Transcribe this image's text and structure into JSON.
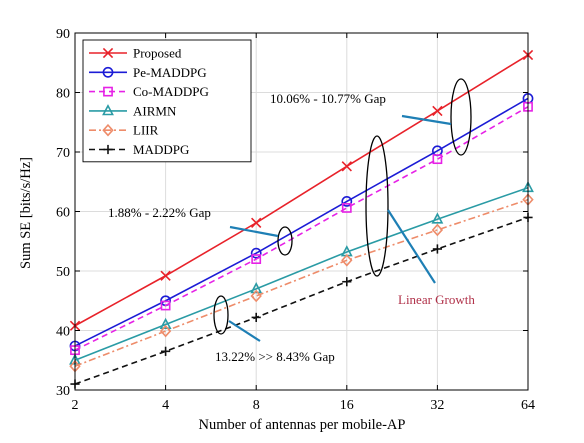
{
  "chart_data": {
    "type": "line",
    "xlabel": "Number of antennas per mobile-AP",
    "ylabel": "Sum SE [bits/s/Hz]",
    "x_scale": "log2",
    "x": [
      2,
      4,
      8,
      16,
      32,
      64
    ],
    "x_tick_labels": [
      "2",
      "4",
      "8",
      "16",
      "32",
      "64"
    ],
    "ylim": [
      30,
      90
    ],
    "y_ticks": [
      30,
      40,
      50,
      60,
      70,
      80,
      90
    ],
    "grid": true,
    "legend_position": "top-left",
    "series": [
      {
        "name": "Proposed",
        "color": "#e8222a",
        "marker": "x",
        "dash": "solid",
        "values": [
          40.8,
          49.2,
          58.1,
          67.6,
          76.9,
          86.3
        ]
      },
      {
        "name": "Pe-MADDPG",
        "color": "#1c1cd6",
        "marker": "circle",
        "dash": "solid",
        "values": [
          37.4,
          45.0,
          53.0,
          61.7,
          70.2,
          79.0
        ]
      },
      {
        "name": "Co-MADDPG",
        "color": "#e622e6",
        "marker": "square",
        "dash": "dashed",
        "values": [
          36.7,
          44.2,
          52.0,
          60.6,
          68.8,
          77.6
        ]
      },
      {
        "name": "AIRMN",
        "color": "#2a9ba5",
        "marker": "triangle",
        "dash": "solid",
        "values": [
          35.0,
          41.0,
          47.0,
          53.2,
          58.7,
          64.0
        ]
      },
      {
        "name": "LIIR",
        "color": "#ee8c6a",
        "marker": "diamond",
        "dash": "dashdot",
        "values": [
          34.0,
          39.9,
          45.8,
          51.8,
          56.9,
          62.0
        ]
      },
      {
        "name": "MADDPG",
        "color": "#111111",
        "marker": "plus",
        "dash": "dashed",
        "values": [
          31.0,
          36.5,
          42.2,
          48.2,
          53.7,
          59.0
        ]
      }
    ],
    "annotations": {
      "gap_top": "10.06% - 10.77% Gap",
      "gap_mid": "1.88% - 2.22% Gap",
      "gap_bottom": "13.22% >> 8.43% Gap",
      "linear": "Linear Growth",
      "linear_color": "#b03048",
      "arrow_color": "#1e7fb5"
    }
  }
}
